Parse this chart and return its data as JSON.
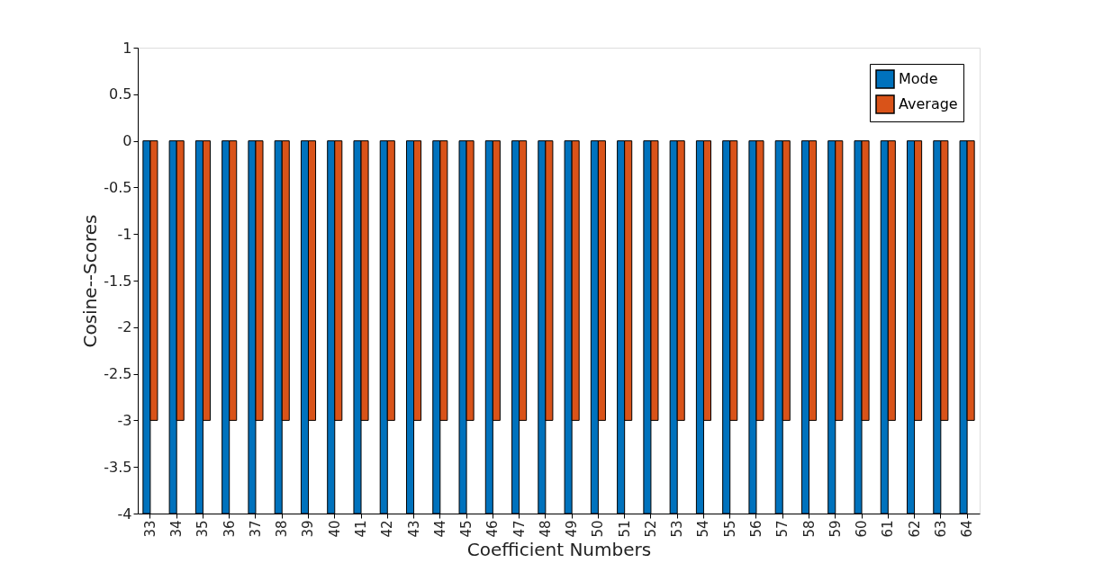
{
  "chart_data": {
    "type": "bar",
    "xlabel": "Coefficient Numbers",
    "ylabel": "Cosine--Scores",
    "categories": [
      "33",
      "34",
      "35",
      "36",
      "37",
      "38",
      "39",
      "40",
      "41",
      "42",
      "43",
      "44",
      "45",
      "46",
      "47",
      "48",
      "49",
      "50",
      "51",
      "52",
      "53",
      "54",
      "55",
      "56",
      "57",
      "58",
      "59",
      "60",
      "61",
      "62",
      "63",
      "64"
    ],
    "series": [
      {
        "name": "Mode",
        "color": "#0072bd",
        "values": [
          -4,
          -4,
          -4,
          -4,
          -4,
          -4,
          -4,
          -4,
          -4,
          -4,
          -4,
          -4,
          -4,
          -4,
          -4,
          -4,
          -4,
          -4,
          -4,
          -4,
          -4,
          -4,
          -4,
          -4,
          -4,
          -4,
          -4,
          -4,
          -4,
          -4,
          -4,
          -4
        ]
      },
      {
        "name": "Average",
        "color": "#d95319",
        "values": [
          -3,
          -3,
          -3,
          -3,
          -3,
          -3,
          -3,
          -3,
          -3,
          -3,
          -3,
          -3,
          -3,
          -3,
          -3,
          -3,
          -3,
          -3,
          -3,
          -3,
          -3,
          -3,
          -3,
          -3,
          -3,
          -3,
          -3,
          -3,
          -3,
          -3,
          -3,
          -3
        ]
      }
    ],
    "ylim": [
      -4,
      1
    ],
    "yticks": [
      -4,
      -3.5,
      -3,
      -2.5,
      -2,
      -1.5,
      -1,
      -0.5,
      0,
      0.5,
      1
    ],
    "grid": false,
    "legend": "top right"
  }
}
